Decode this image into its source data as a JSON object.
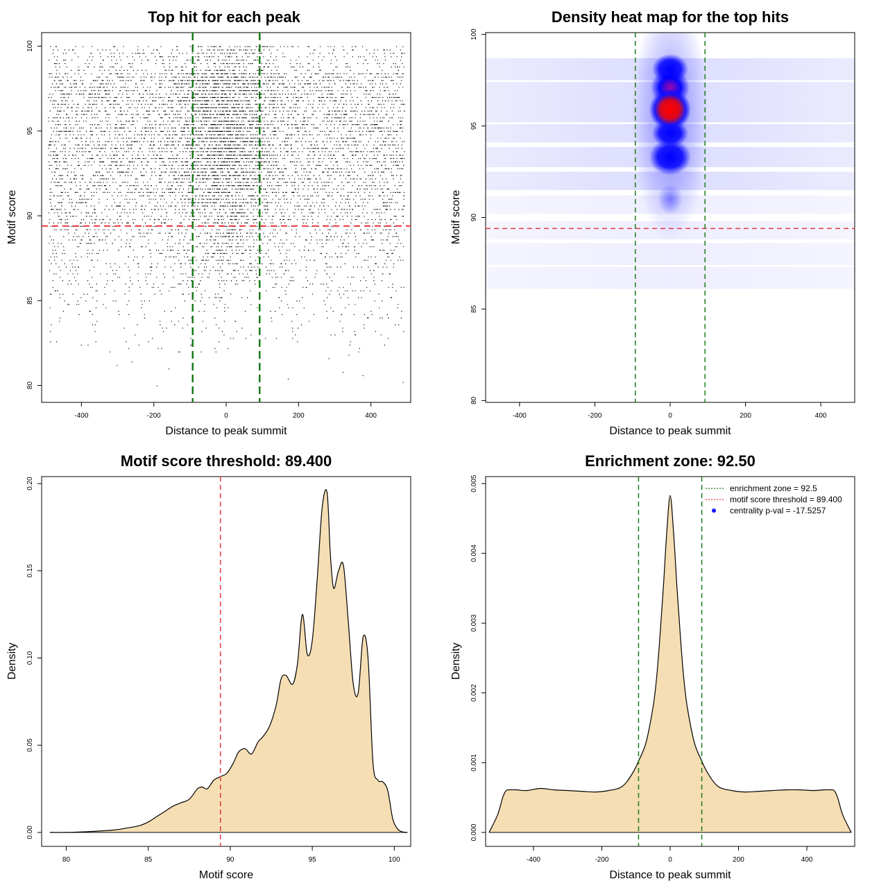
{
  "chart_data": [
    {
      "id": "scatter",
      "type": "scatter",
      "title": "Top hit for each peak",
      "xlabel": "Distance to peak summit",
      "ylabel": "Motif score",
      "xlim": [
        -510,
        510
      ],
      "ylim": [
        79.0,
        100.8
      ],
      "xticks": [
        "-400",
        "-200",
        "0",
        "200",
        "400"
      ],
      "yticks": [
        "80",
        "85",
        "90",
        "95",
        "100"
      ],
      "threshold": 89.4,
      "enrichment_zone": [
        -92.5,
        92.5
      ],
      "points_summary": {
        "x_range": [
          -490,
          490
        ],
        "score_range": [
          79.8,
          100.0
        ],
        "estimated_count": 16000,
        "note_visible_pattern": "dense horizontal bands at discrete scores above ~88; sparse points below; concentration near x=0"
      },
      "colors": {
        "points": "#000000",
        "threshold": "#e8373c",
        "zone": "#1a7a1a"
      }
    },
    {
      "id": "heatmap",
      "type": "heatmap",
      "title": "Density heat map for the top hits",
      "xlabel": "Distance to peak summit",
      "ylabel": "Motif score",
      "xlim": [
        -490,
        490
      ],
      "ylim": [
        79.9,
        100.1
      ],
      "xticks": [
        "-400",
        "-200",
        "0",
        "200",
        "400"
      ],
      "yticks": [
        "80",
        "85",
        "90",
        "95",
        "100"
      ],
      "threshold": 89.4,
      "enrichment_zone": [
        -92.5,
        92.5
      ],
      "hotspots": [
        {
          "x": 0,
          "score": 95.9,
          "level": "red"
        },
        {
          "x": 0,
          "score": 97.1,
          "level": "blue-red"
        },
        {
          "x": 0,
          "score": 98.1,
          "level": "blue"
        },
        {
          "x": 0,
          "score": 94.6,
          "level": "blue"
        },
        {
          "x": 0,
          "score": 93.3,
          "level": "blue"
        }
      ],
      "colors": {
        "low": "#ffffff",
        "mid": "#0000ff",
        "high": "#ff0000",
        "threshold": "#e8373c",
        "zone": "#1a7a1a"
      }
    },
    {
      "id": "score-density",
      "type": "area",
      "title": "Motif score threshold: 89.400",
      "xlabel": "Motif score",
      "ylabel": "Density",
      "xlim": [
        78.5,
        101.0
      ],
      "ylim": [
        -0.008,
        0.204
      ],
      "xticks": [
        "80",
        "85",
        "90",
        "95",
        "100"
      ],
      "yticks": [
        "0.00",
        "0.05",
        "0.10",
        "0.15",
        "0.20"
      ],
      "threshold": 89.4,
      "x": [
        79.0,
        80.0,
        81.0,
        82.0,
        83.0,
        84.0,
        84.5,
        85.0,
        85.5,
        86.0,
        86.5,
        87.0,
        87.5,
        88.0,
        88.3,
        88.6,
        89.0,
        89.4,
        89.8,
        90.2,
        90.5,
        90.9,
        91.3,
        91.7,
        92.0,
        92.4,
        92.8,
        93.1,
        93.4,
        93.8,
        94.1,
        94.4,
        94.7,
        95.0,
        95.3,
        95.6,
        95.9,
        96.1,
        96.3,
        96.6,
        96.9,
        97.2,
        97.5,
        97.8,
        98.1,
        98.4,
        98.7,
        99.0,
        99.3,
        99.6,
        99.9,
        100.2,
        100.5,
        100.8
      ],
      "y": [
        0.0,
        0.0,
        0.0003,
        0.0008,
        0.0015,
        0.003,
        0.004,
        0.006,
        0.009,
        0.012,
        0.015,
        0.017,
        0.019,
        0.025,
        0.026,
        0.025,
        0.03,
        0.032,
        0.034,
        0.04,
        0.046,
        0.048,
        0.045,
        0.052,
        0.055,
        0.061,
        0.073,
        0.088,
        0.09,
        0.085,
        0.097,
        0.125,
        0.102,
        0.11,
        0.145,
        0.186,
        0.195,
        0.16,
        0.14,
        0.15,
        0.153,
        0.12,
        0.085,
        0.08,
        0.112,
        0.1,
        0.04,
        0.03,
        0.029,
        0.024,
        0.008,
        0.002,
        0.0003,
        0.0
      ],
      "colors": {
        "fill": "#f5deb3",
        "line": "#000000",
        "threshold": "#e8373c"
      }
    },
    {
      "id": "distance-density",
      "type": "area",
      "title": "Enrichment zone: 92.50",
      "xlabel": "Distance to peak summit",
      "ylabel": "Density",
      "xlim": [
        -540,
        540
      ],
      "ylim": [
        -0.0002,
        0.0051
      ],
      "xticks": [
        "-400",
        "-200",
        "0",
        "200",
        "400"
      ],
      "yticks": [
        "0.000",
        "0.001",
        "0.002",
        "0.003",
        "0.004",
        "0.005"
      ],
      "enrichment_zone": [
        -92.5,
        92.5
      ],
      "x": [
        -530,
        -505,
        -490,
        -480,
        -470,
        -450,
        -420,
        -380,
        -340,
        -300,
        -260,
        -220,
        -180,
        -140,
        -110,
        -90,
        -70,
        -50,
        -40,
        -30,
        -20,
        -10,
        0,
        10,
        20,
        30,
        40,
        50,
        70,
        90,
        110,
        140,
        180,
        220,
        260,
        300,
        340,
        380,
        420,
        450,
        470,
        480,
        490,
        505,
        530
      ],
      "y": [
        0.0,
        0.00025,
        0.0005,
        0.0006,
        0.00061,
        0.00061,
        0.0006,
        0.00063,
        0.00061,
        0.0006,
        0.00059,
        0.00058,
        0.0006,
        0.00066,
        0.00085,
        0.00105,
        0.0013,
        0.0018,
        0.0022,
        0.0028,
        0.0035,
        0.0043,
        0.00483,
        0.0043,
        0.0035,
        0.0028,
        0.0022,
        0.0018,
        0.0013,
        0.00105,
        0.00085,
        0.00066,
        0.0006,
        0.00058,
        0.00059,
        0.0006,
        0.00061,
        0.00061,
        0.0006,
        0.00061,
        0.00061,
        0.0006,
        0.0005,
        0.00025,
        0.0
      ],
      "legend": [
        {
          "label": "enrichment zone = 92.5",
          "kind": "line",
          "color": "#1a7a1a"
        },
        {
          "label": "motif score threshold = 89.400",
          "kind": "line",
          "color": "#e8373c"
        },
        {
          "label": "centrality p-val = -17.5257",
          "kind": "dot",
          "color": "#1414ff"
        }
      ],
      "colors": {
        "fill": "#f5deb3",
        "line": "#000000",
        "zone": "#1a7a1a"
      }
    }
  ]
}
